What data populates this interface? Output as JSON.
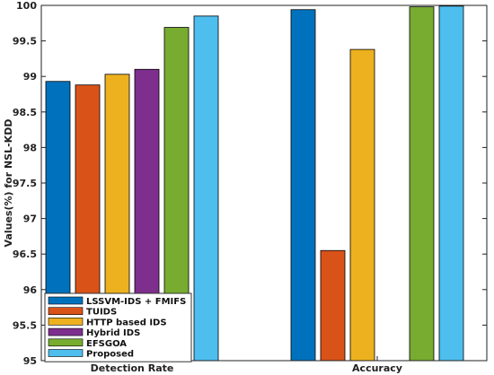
{
  "chart_data": {
    "type": "bar",
    "title": "",
    "xlabel": "",
    "ylabel": "Values(%) for NSL-KDD",
    "ylim": [
      95,
      100
    ],
    "yticks": [
      95,
      95.5,
      96,
      96.5,
      97,
      97.5,
      98,
      98.5,
      99,
      99.5,
      100
    ],
    "categories": [
      "Detection Rate",
      "Accuracy"
    ],
    "series": [
      {
        "name": "LSSVM-IDS + FMIFS",
        "color": "#0072BD",
        "values": [
          98.93,
          99.94
        ]
      },
      {
        "name": "TUIDS",
        "color": "#D95319",
        "values": [
          98.88,
          96.55
        ]
      },
      {
        "name": "HTTP based IDS",
        "color": "#EDB120",
        "values": [
          99.03,
          99.38
        ]
      },
      {
        "name": "Hybrid IDS",
        "color": "#7E2F8E",
        "values": [
          99.1,
          null
        ]
      },
      {
        "name": "EFSGOA",
        "color": "#77AC30",
        "values": [
          99.69,
          99.98
        ]
      },
      {
        "name": "Proposed",
        "color": "#4DBEEE",
        "values": [
          99.85,
          99.99
        ]
      }
    ],
    "grid": false,
    "legend_position": "bottom-left"
  }
}
